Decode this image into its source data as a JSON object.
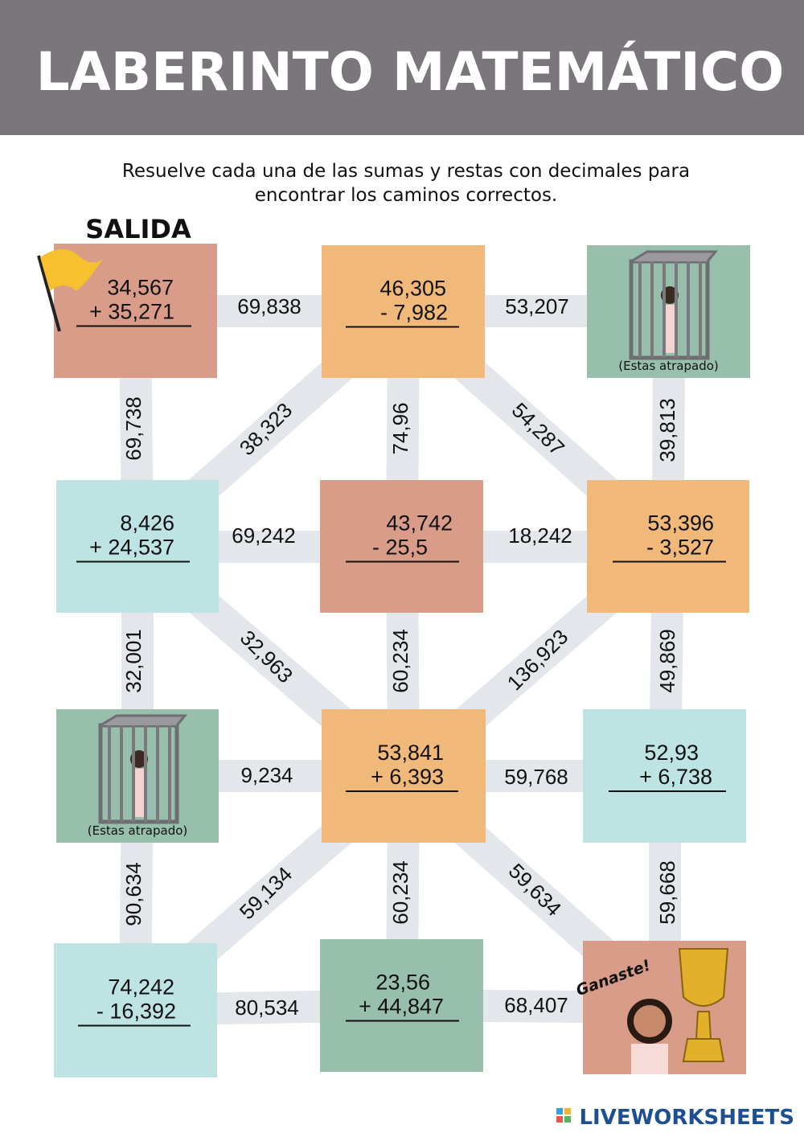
{
  "header": {
    "title": "LABERINTO MATEMÁTICO"
  },
  "instructions": {
    "lines": [
      "Resuelve cada una de las sumas y restas con decimales para",
      "encontrar los caminos correctos."
    ]
  },
  "start_label": "SALIDA",
  "nodes": [
    {
      "top": "34,567",
      "bottom": "+ 35,271"
    },
    {
      "top": "46,305",
      "bottom": "- 7,982"
    },
    {
      "top": "8,426",
      "bottom": "+ 24,537"
    },
    {
      "top": "43,742",
      "bottom": "- 25,5"
    },
    {
      "top": "53,396",
      "bottom": "- 3,527"
    },
    {
      "top": "53,841",
      "bottom": "+ 6,393"
    },
    {
      "top": "52,93",
      "bottom": "+ 6,738"
    },
    {
      "top": "74,242",
      "bottom": "- 16,392"
    },
    {
      "top": "23,56",
      "bottom": "+ 44,847"
    }
  ],
  "jails": [
    {
      "caption": "(Estas atrapado)"
    },
    {
      "caption": "(Estas atrapado)"
    }
  ],
  "goal": {
    "label": "Ganaste!"
  },
  "paths": [
    {
      "label": "69,838"
    },
    {
      "label": "53,207"
    },
    {
      "label": "69,738"
    },
    {
      "label": "38,323"
    },
    {
      "label": "74,96"
    },
    {
      "label": "54,287"
    },
    {
      "label": "39,813"
    },
    {
      "label": "69,242"
    },
    {
      "label": "18,242"
    },
    {
      "label": "32,001"
    },
    {
      "label": "32,963"
    },
    {
      "label": "60,234"
    },
    {
      "label": "136,923"
    },
    {
      "label": "49,869"
    },
    {
      "label": "9,234"
    },
    {
      "label": "59,768"
    },
    {
      "label": "90,634"
    },
    {
      "label": "59,134"
    },
    {
      "label": "60,234"
    },
    {
      "label": "59,634"
    },
    {
      "label": "59,668"
    },
    {
      "label": "80,534"
    },
    {
      "label": "68,407"
    }
  ],
  "footer": {
    "brand": "LIVEWORKSHEETS"
  }
}
